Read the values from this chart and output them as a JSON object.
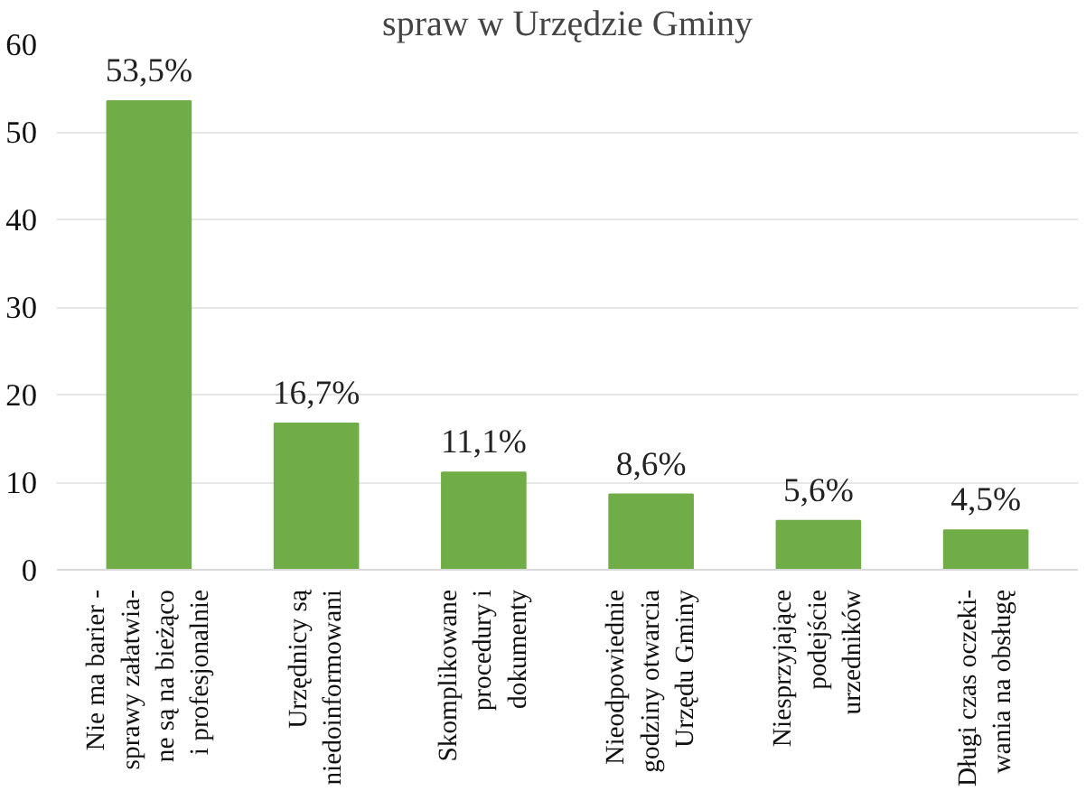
{
  "chart_data": {
    "type": "bar",
    "title": "spraw w Urzędzie Gminy",
    "categories": [
      "Nie ma barier -\nsprawy załatwia-\nne są na bieżąco\ni profesjonalnie",
      "Urzędnicy są\nniedoinformowani",
      "Skomplikowane\nprocedury i\ndokumenty",
      "Nieodpowiednie\ngodziny otwarcia\nUrzędu Gminy",
      "Niesprzyjające\npodejście\nurzedników",
      "Długi czas oczeki-\nwania na obsługę"
    ],
    "values": [
      53.5,
      16.7,
      11.1,
      8.6,
      5.6,
      4.5
    ],
    "value_labels": [
      "53,5%",
      "16,7%",
      "11,1%",
      "8,6%",
      "5,6%",
      "4,5%"
    ],
    "color": "#70ad47",
    "ylim": [
      0,
      60
    ],
    "yticks": [
      0,
      10,
      20,
      30,
      40,
      50,
      60
    ],
    "grid": "y"
  }
}
